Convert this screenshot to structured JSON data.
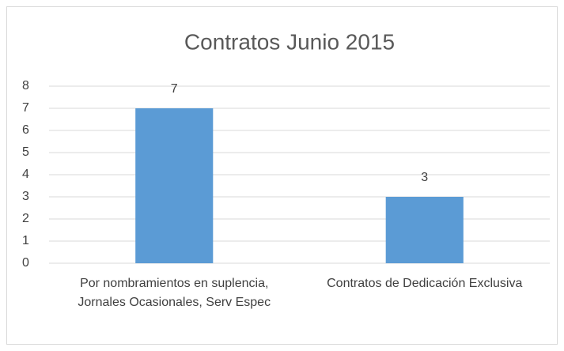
{
  "chart_data": {
    "type": "bar",
    "title": "Contratos Junio 2015",
    "categories": [
      "Por nombramientos en suplencia,  Jornales Ocasionales, Serv Espec",
      "Contratos de Dedicación Exclusiva"
    ],
    "values": [
      7,
      3
    ],
    "color": "#5b9bd5",
    "ylim": [
      0,
      8
    ],
    "yticks": [
      0,
      1,
      2,
      3,
      4,
      5,
      6,
      7,
      8
    ],
    "grid": true
  }
}
